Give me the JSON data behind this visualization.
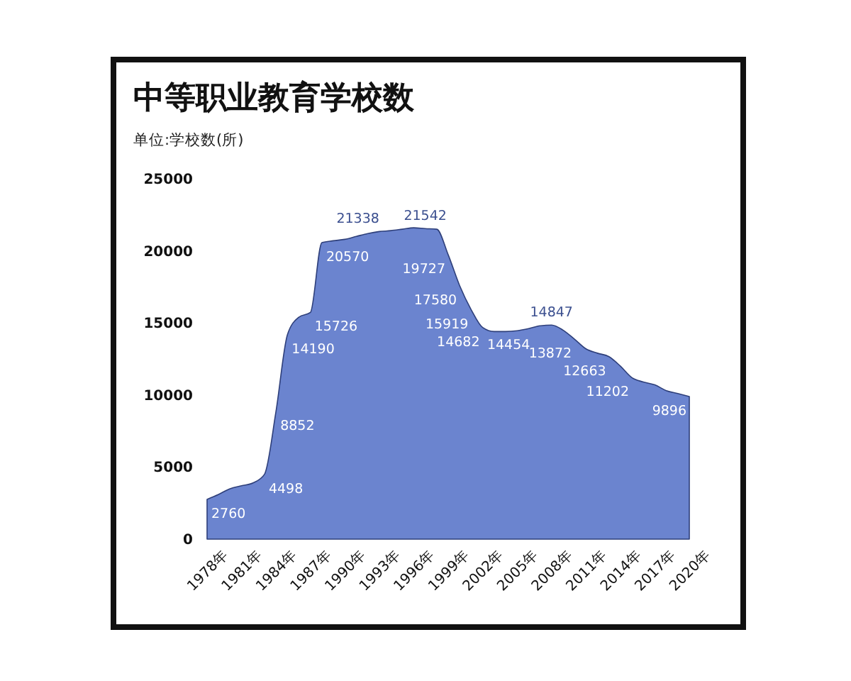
{
  "chart_data": {
    "type": "area",
    "title": "中等职业教育学校数",
    "subtitle": "单位:学校数(所)",
    "x": [
      1978,
      1979,
      1980,
      1981,
      1982,
      1983,
      1984,
      1985,
      1986,
      1987,
      1988,
      1989,
      1990,
      1991,
      1992,
      1993,
      1994,
      1995,
      1996,
      1997,
      1998,
      1999,
      2000,
      2001,
      2002,
      2003,
      2004,
      2005,
      2006,
      2007,
      2008,
      2009,
      2010,
      2011,
      2012,
      2013,
      2014,
      2015,
      2016,
      2017,
      2018,
      2019,
      2020
    ],
    "series": [
      {
        "color": "#6b84cf",
        "values": [
          2760,
          3100,
          3500,
          3700,
          3900,
          4498,
          8852,
          14190,
          15400,
          15726,
          20570,
          20700,
          20800,
          21000,
          21200,
          21338,
          21400,
          21500,
          21600,
          21542,
          21500,
          19727,
          17580,
          15919,
          14682,
          14400,
          14400,
          14454,
          14600,
          14800,
          14847,
          14500,
          13872,
          13200,
          12900,
          12663,
          12000,
          11202,
          10900,
          10700,
          10300,
          10100,
          9896
        ],
        "value_labels": [
          "2760",
          null,
          null,
          null,
          null,
          "4498",
          "8852",
          "14190",
          null,
          "15726",
          "20570",
          null,
          null,
          null,
          null,
          "21338",
          null,
          null,
          null,
          "21542",
          null,
          "19727",
          "17580",
          "15919",
          "14682",
          null,
          null,
          "14454",
          null,
          null,
          "14847",
          null,
          "13872",
          null,
          null,
          "12663",
          null,
          "11202",
          null,
          null,
          null,
          null,
          "9896"
        ]
      }
    ],
    "xlim": [
      1978,
      2020
    ],
    "xticks": [
      {
        "value": 1978,
        "label": "1978年"
      },
      {
        "value": 1981,
        "label": "1981年"
      },
      {
        "value": 1984,
        "label": "1984年"
      },
      {
        "value": 1987,
        "label": "1987年"
      },
      {
        "value": 1990,
        "label": "1990年"
      },
      {
        "value": 1993,
        "label": "1993年"
      },
      {
        "value": 1996,
        "label": "1996年"
      },
      {
        "value": 1999,
        "label": "1999年"
      },
      {
        "value": 2002,
        "label": "2002年"
      },
      {
        "value": 2005,
        "label": "2005年"
      },
      {
        "value": 2008,
        "label": "2008年"
      },
      {
        "value": 2011,
        "label": "2011年"
      },
      {
        "value": 2014,
        "label": "2014年"
      },
      {
        "value": 2017,
        "label": "2017年"
      },
      {
        "value": 2020,
        "label": "2020年"
      }
    ],
    "ylim": [
      0,
      25000
    ],
    "yticks": [
      0,
      5000,
      10000,
      15000,
      20000,
      25000
    ],
    "grid": false
  }
}
